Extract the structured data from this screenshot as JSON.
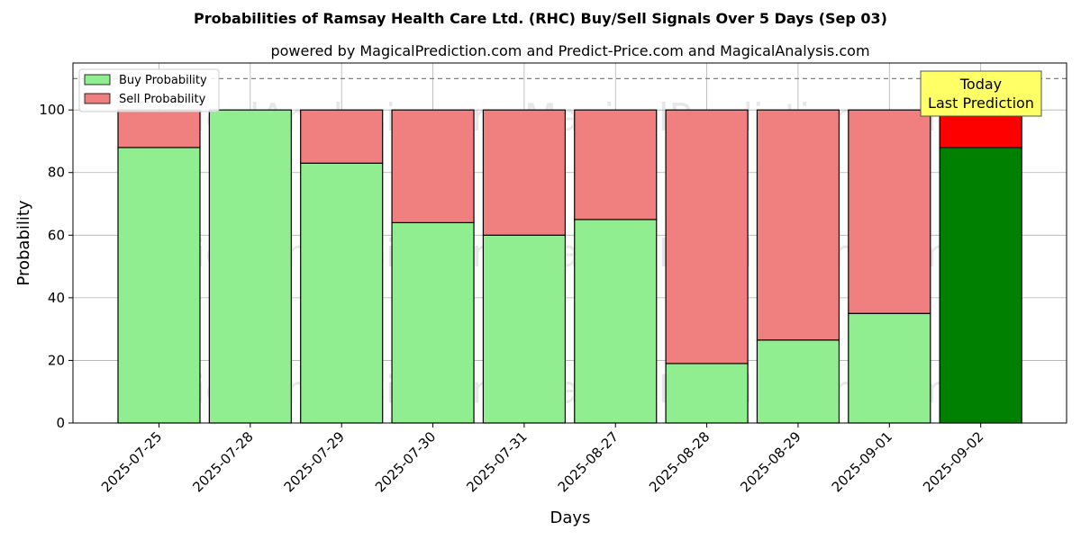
{
  "chart_data": {
    "type": "bar",
    "stacked": true,
    "title": "Probabilities of Ramsay Health Care Ltd. (RHC) Buy/Sell Signals Over 5 Days (Sep 03)",
    "subtitle": "powered by MagicalPrediction.com and Predict-Price.com and MagicalAnalysis.com",
    "xlabel": "Days",
    "ylabel": "Probability",
    "ylim": [
      0,
      115
    ],
    "yticks": [
      0,
      20,
      40,
      60,
      80,
      100
    ],
    "grid": true,
    "reference_line": 110,
    "legend_position": "top-left",
    "categories": [
      "2025-07-25",
      "2025-07-28",
      "2025-07-29",
      "2025-07-30",
      "2025-07-31",
      "2025-08-27",
      "2025-08-28",
      "2025-08-29",
      "2025-09-01",
      "2025-09-02"
    ],
    "series": [
      {
        "name": "Buy Probability",
        "color": "#90ee90",
        "values": [
          88,
          100,
          83,
          64,
          60,
          65,
          19,
          26.5,
          35,
          88
        ]
      },
      {
        "name": "Sell Probability",
        "color": "#f08080",
        "values": [
          12,
          0,
          17,
          36,
          40,
          35,
          81,
          73.5,
          65,
          12
        ]
      }
    ],
    "highlight": {
      "category": "2025-09-02",
      "buy_color": "#008000",
      "sell_color": "#ff0000"
    },
    "annotation": {
      "lines": [
        "Today",
        "Last Prediction"
      ],
      "category": "2025-09-02",
      "background": "#ffff66"
    },
    "watermarks": [
      "MagicalAnalysis.com",
      "MagicalPrediction.com"
    ]
  }
}
